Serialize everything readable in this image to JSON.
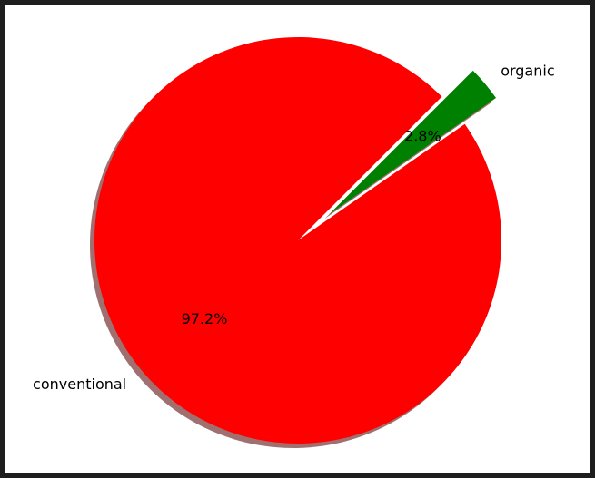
{
  "chart_data": {
    "type": "pie",
    "title": "",
    "slices": [
      {
        "label": "conventional",
        "value": 97.2,
        "pct_label": "97.2%",
        "color": "#ff0000",
        "exploded": false
      },
      {
        "label": "organic",
        "value": 2.8,
        "pct_label": "2.8%",
        "color": "#008000",
        "exploded": true
      }
    ],
    "shadow": true,
    "shadow_color": "#a07070"
  }
}
